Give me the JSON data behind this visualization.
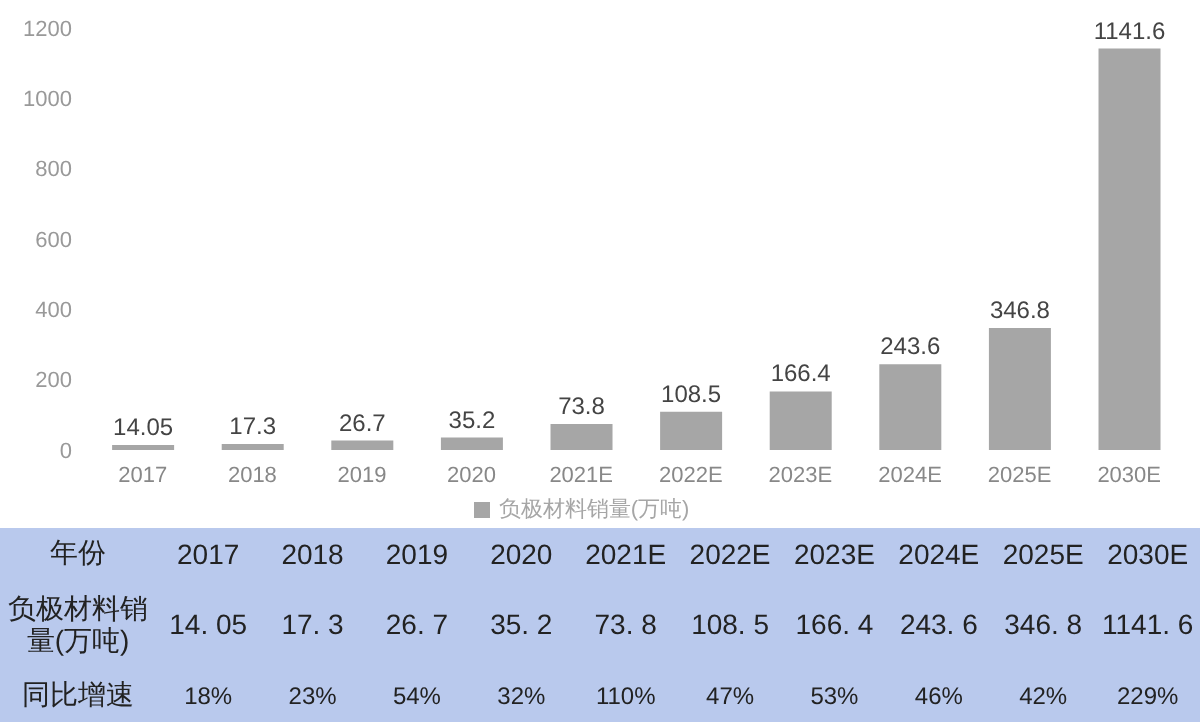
{
  "chart_data": {
    "type": "bar",
    "categories": [
      "2017",
      "2018",
      "2019",
      "2020",
      "2021E",
      "2022E",
      "2023E",
      "2024E",
      "2025E",
      "2030E"
    ],
    "series": [
      {
        "name": "负极材料销量(万吨)",
        "color": "#a6a6a6",
        "values": [
          14.05,
          17.3,
          26.7,
          35.2,
          73.8,
          108.5,
          166.4,
          243.6,
          346.8,
          1141.6
        ]
      }
    ],
    "ylim": [
      0,
      1200
    ],
    "yticks": [
      0,
      200,
      400,
      600,
      800,
      1000,
      1200
    ],
    "grid": false,
    "legend": "bottom",
    "data_labels": true,
    "annotations": [
      "年份",
      "负极材料销量(万吨)",
      "14. 05",
      "17. 3",
      "26. 7",
      "35. 2",
      "73. 8",
      "108. 5",
      "166. 4",
      "243. 6",
      "346. 8",
      "1141. 6",
      "同比增速",
      "18%",
      "23%",
      "54%",
      "32%",
      "110%",
      "47%",
      "53%",
      "46%",
      "42%",
      "229%"
    ]
  }
}
